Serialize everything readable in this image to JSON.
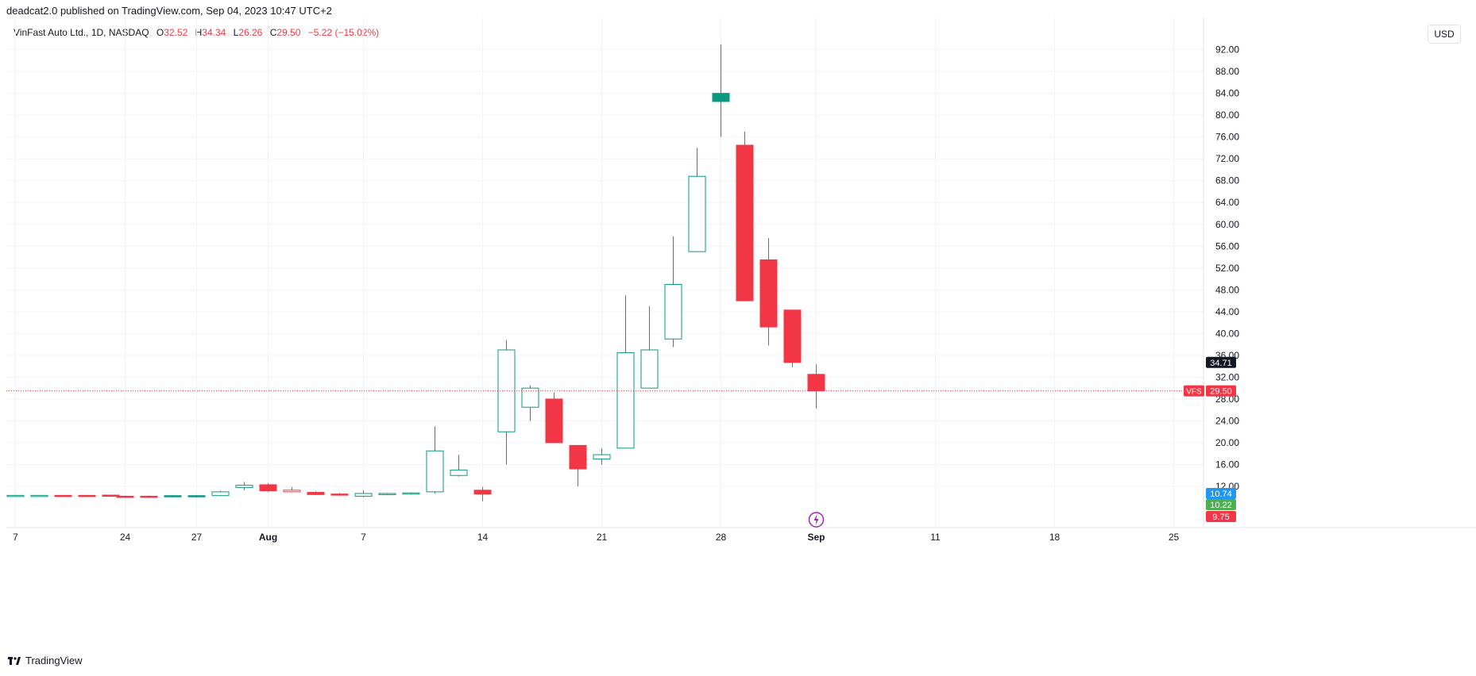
{
  "header": {
    "published_line": "deadcat2.0 published on TradingView.com, Sep 04, 2023 10:47 UTC+2"
  },
  "legend": {
    "symbol_line": "VinFast Auto Ltd., 1D, NASDAQ",
    "open_label": "O",
    "open_value": "32.52",
    "high_label": "H",
    "high_value": "34.34",
    "low_label": "L",
    "low_value": "26.26",
    "close_label": "C",
    "close_value": "29.50",
    "change_text": "−5.22 (−15.02%)"
  },
  "currency_button": "USD",
  "footer": {
    "brand": "TradingView"
  },
  "colors": {
    "up": "#089981",
    "down": "#f23645",
    "grid": "#f0f3fa",
    "axis_line": "#e0e3eb",
    "black_label": "#131722",
    "blue_label": "#2196f3",
    "green_label": "#4caf50",
    "red_label": "#f23645",
    "event_icon": "#9c27b0"
  },
  "chart_data": {
    "type": "candlestick",
    "symbol": "VFS",
    "ylim": [
      8,
      94
    ],
    "y_ticks": [
      "12.00",
      "16.00",
      "20.00",
      "24.00",
      "28.00",
      "32.00",
      "36.00",
      "40.00",
      "44.00",
      "48.00",
      "52.00",
      "56.00",
      "60.00",
      "64.00",
      "68.00",
      "72.00",
      "76.00",
      "80.00",
      "84.00",
      "88.00",
      "92.00"
    ],
    "x_ticks": [
      "7",
      "24",
      "27",
      "Aug",
      "7",
      "14",
      "21",
      "28",
      "Sep",
      "11",
      "18",
      "25"
    ],
    "x_tick_bar_index": [
      -4.6,
      0,
      3,
      6,
      10,
      15,
      20,
      25,
      29,
      34,
      39,
      44
    ],
    "candles": [
      {
        "o": 10.3,
        "h": 10.4,
        "l": 10.25,
        "c": 10.35
      },
      {
        "o": 10.3,
        "h": 10.4,
        "l": 10.25,
        "c": 10.35
      },
      {
        "o": 10.35,
        "h": 10.4,
        "l": 10.25,
        "c": 10.3
      },
      {
        "o": 10.35,
        "h": 10.4,
        "l": 10.25,
        "c": 10.3
      },
      {
        "o": 10.4,
        "h": 10.45,
        "l": 10.15,
        "c": 10.2
      },
      {
        "o": 10.2,
        "h": 10.3,
        "l": 10.1,
        "c": 10.15
      },
      {
        "o": 10.2,
        "h": 10.3,
        "l": 10.1,
        "c": 10.15
      },
      {
        "o": 10.1,
        "h": 10.4,
        "l": 10.0,
        "c": 10.3
      },
      {
        "o": 10.1,
        "h": 10.4,
        "l": 10.0,
        "c": 10.3
      },
      {
        "o": 10.3,
        "h": 11.2,
        "l": 10.2,
        "c": 11.0
      },
      {
        "o": 11.8,
        "h": 12.8,
        "l": 11.3,
        "c": 12.2
      },
      {
        "o": 12.3,
        "h": 12.6,
        "l": 11.0,
        "c": 11.2
      },
      {
        "o": 11.3,
        "h": 11.9,
        "l": 10.9,
        "c": 11.0
      },
      {
        "o": 10.9,
        "h": 11.1,
        "l": 10.4,
        "c": 10.5
      },
      {
        "o": 10.6,
        "h": 10.8,
        "l": 10.3,
        "c": 10.4
      },
      {
        "o": 10.2,
        "h": 11.3,
        "l": 10.0,
        "c": 10.7
      },
      {
        "o": 10.6,
        "h": 10.8,
        "l": 10.4,
        "c": 10.7
      },
      {
        "o": 10.7,
        "h": 10.9,
        "l": 10.5,
        "c": 10.8
      },
      {
        "o": 11.0,
        "h": 23.0,
        "l": 10.7,
        "c": 18.5
      },
      {
        "o": 14.0,
        "h": 17.8,
        "l": 13.8,
        "c": 15.0
      },
      {
        "o": 11.3,
        "h": 11.9,
        "l": 9.3,
        "c": 10.6
      },
      {
        "o": 22.0,
        "h": 38.8,
        "l": 16.0,
        "c": 37.0
      },
      {
        "o": 26.5,
        "h": 30.5,
        "l": 24.0,
        "c": 30.0
      },
      {
        "o": 28.0,
        "h": 29.2,
        "l": 20.0,
        "c": 20.0
      },
      {
        "o": 19.5,
        "h": 19.5,
        "l": 12.0,
        "c": 15.2
      },
      {
        "o": 17.0,
        "h": 19.0,
        "l": 16.0,
        "c": 17.8
      },
      {
        "o": 19.0,
        "h": 47.0,
        "l": 19.0,
        "c": 36.5
      },
      {
        "o": 30.0,
        "h": 45.0,
        "l": 30.0,
        "c": 37.0
      },
      {
        "o": 39.0,
        "h": 57.8,
        "l": 37.5,
        "c": 49.0
      },
      {
        "o": 55.0,
        "h": 74.0,
        "l": 55.0,
        "c": 68.8
      },
      {
        "o": 82.5,
        "h": 93.0,
        "l": 76.0,
        "c": 84.0
      },
      {
        "o": 74.5,
        "h": 77.0,
        "l": 46.0,
        "c": 46.0
      },
      {
        "o": 53.5,
        "h": 57.5,
        "l": 37.8,
        "c": 41.2
      },
      {
        "o": 44.3,
        "h": 44.3,
        "l": 33.8,
        "c": 34.71
      },
      {
        "o": 32.52,
        "h": 34.34,
        "l": 26.26,
        "c": 29.5
      }
    ],
    "hollow_up": true,
    "hollow_down_indices": [
      10,
      12,
      15,
      19,
      22
    ],
    "filled_up_indices": [
      7,
      8,
      30
    ],
    "price_labels": [
      {
        "value": 34.71,
        "text": "34.71",
        "color": "#131722",
        "text_color": "#ffffff"
      },
      {
        "value": 29.5,
        "text": "29.50",
        "color": "#f23645",
        "text_color": "#ffffff",
        "tag": "VFS"
      },
      {
        "value": 10.74,
        "text": "10.74",
        "color": "#2196f3",
        "text_color": "#ffffff"
      },
      {
        "value": 10.22,
        "text": "10.22",
        "color": "#4caf50",
        "text_color": "#ffffff"
      },
      {
        "value": 9.75,
        "text": "9.75",
        "color": "#f23645",
        "text_color": "#ffffff"
      }
    ],
    "current_price": 29.5,
    "event_bar_index": 34
  }
}
